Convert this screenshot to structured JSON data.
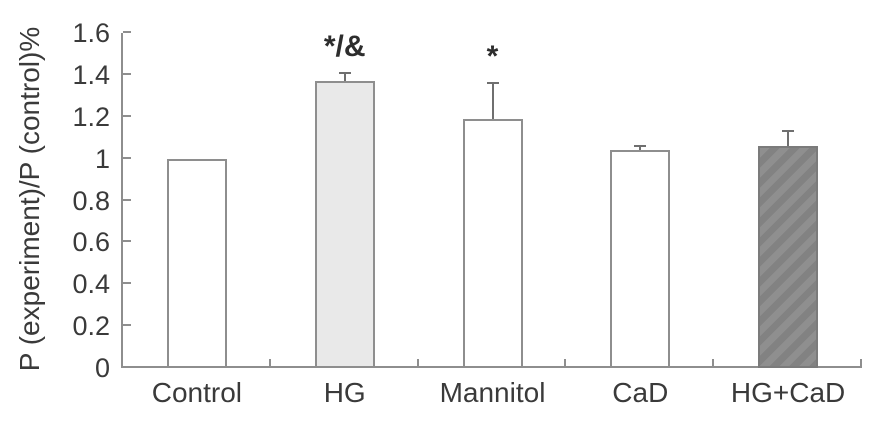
{
  "chart_data": {
    "type": "bar",
    "title": "",
    "xlabel": "",
    "ylabel": "P (experiment)/P (control)%",
    "ylim": [
      0,
      1.6
    ],
    "ytick_labels": [
      "0",
      "0.2",
      "0.4",
      "0.6",
      "0.8",
      "1",
      "1.2",
      "1.4",
      "1.6"
    ],
    "categories": [
      "Control",
      "HG",
      "Mannitol",
      "CaD",
      "HG+CaD"
    ],
    "values": [
      1.0,
      1.37,
      1.19,
      1.04,
      1.06
    ],
    "errors": [
      0,
      0.04,
      0.17,
      0.02,
      0.07
    ],
    "annotations": [
      "",
      "*/&",
      "*",
      "",
      ""
    ],
    "bar_styles": [
      "white",
      "lightgray",
      "white",
      "white",
      "darkhatch"
    ],
    "grid": false,
    "legend": false
  },
  "colors": {
    "axis": "#8e8e8e",
    "text": "#3a3a3a",
    "bar_outline": "#8e8e8e",
    "bar_white": "#ffffff",
    "bar_lightgray": "#e9e9e9",
    "bar_darkgray": "#8a8a8a",
    "error_bar": "#6f6f6f",
    "annotation": "#2d2d2d",
    "background": "#ffffff"
  }
}
